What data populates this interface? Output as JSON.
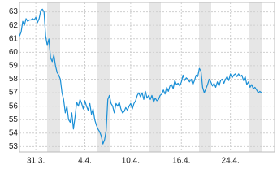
{
  "chart_data": {
    "type": "line",
    "series": [
      {
        "color": "#1a8fd6",
        "values": [
          61.2,
          61.5,
          62.3,
          62.0,
          62.5,
          62.3,
          62.4,
          62.4,
          62.5,
          62.4,
          62.6,
          62.2,
          62.5,
          63.1,
          63.2,
          63.0,
          61.2,
          60.5,
          61.0,
          59.6,
          59.3,
          59.8,
          59.0,
          58.5,
          58.3,
          58.0,
          57.0,
          56.5,
          55.5,
          56.0,
          55.0,
          54.8,
          55.5,
          54.3,
          55.2,
          56.3,
          56.0,
          56.5,
          56.2,
          55.8,
          56.4,
          56.0,
          55.7,
          56.2,
          55.4,
          55.8,
          55.0,
          54.6,
          54.3,
          54.1,
          53.8,
          53.2,
          53.5,
          54.2,
          56.5,
          56.8,
          56.2,
          56.0,
          55.5,
          56.2,
          56.0,
          56.3,
          55.8,
          55.5,
          55.6,
          55.9,
          55.7,
          56.0,
          56.2,
          55.8,
          56.2,
          56.4,
          56.8,
          57.0,
          56.7,
          57.0,
          56.5,
          57.1,
          56.6,
          56.8,
          56.5,
          56.8,
          56.3,
          56.6,
          56.4,
          56.5,
          56.8,
          56.9,
          57.2,
          56.9,
          57.4,
          57.1,
          57.5,
          57.6,
          57.3,
          57.9,
          57.6,
          57.7,
          57.5,
          57.8,
          58.3,
          57.9,
          58.1,
          58.0,
          57.8,
          58.0,
          57.6,
          57.9,
          58.3,
          58.2,
          58.8,
          58.6,
          57.4,
          57.0,
          57.3,
          57.6,
          58.0,
          57.8,
          57.5,
          57.7,
          57.4,
          57.8,
          57.5,
          57.9,
          58.0,
          57.7,
          58.0,
          58.2,
          57.9,
          58.4,
          58.1,
          58.3,
          58.4,
          58.2,
          58.4,
          58.2,
          58.3,
          57.9,
          58.2,
          57.6,
          57.8,
          57.4,
          57.6,
          57.3,
          57.4,
          57.2,
          57.0,
          57.1,
          57.0
        ]
      }
    ],
    "xlim": [
      0,
      156
    ],
    "xticks": [
      {
        "value": 10,
        "label": "31.3."
      },
      {
        "value": 40,
        "label": "4.4."
      },
      {
        "value": 68,
        "label": "10.4."
      },
      {
        "value": 99,
        "label": "16.4."
      },
      {
        "value": 129,
        "label": "24.4."
      }
    ],
    "ylim": [
      52.6,
      63.7
    ],
    "yticks": [
      53,
      54,
      55,
      56,
      57,
      58,
      59,
      60,
      61,
      62,
      63
    ],
    "grid": true
  }
}
